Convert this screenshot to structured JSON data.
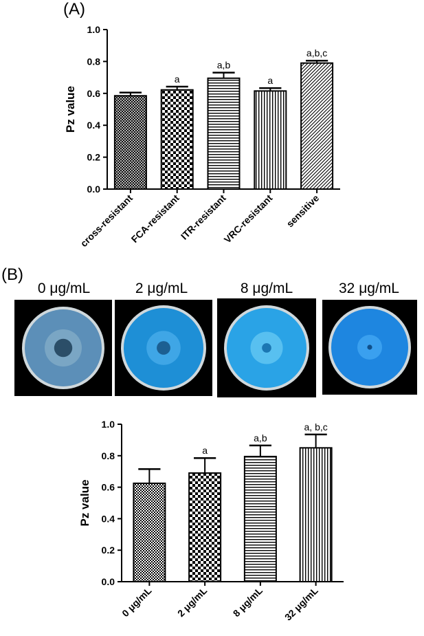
{
  "panels": {
    "a_label": "(A)",
    "b_label": "(B)"
  },
  "plates": {
    "captions": [
      "0 μg/mL",
      "2 μg/mL",
      "8 μg/mL",
      "32 μg/mL"
    ],
    "colors": {
      "background": "#000000",
      "rim": "#cfd8dc",
      "medium": [
        "#5c8fb8",
        "#1e8fd6",
        "#2aa3e6",
        "#1e86e0"
      ],
      "halo": [
        "#7aa6c4",
        "#3fa6e6",
        "#58c0f0",
        "#3aa0ef"
      ],
      "colony": [
        "#2b4e68",
        "#1c5f92",
        "#1b77b3",
        "#0f4f8a"
      ]
    }
  },
  "chart_data": [
    {
      "type": "bar",
      "categories": [
        "cross-resistant",
        "FCA-resistant",
        "ITR-resistant",
        "VRC-resistant",
        "sensitive"
      ],
      "values": [
        0.585,
        0.622,
        0.695,
        0.615,
        0.79
      ],
      "errors": [
        0.02,
        0.02,
        0.035,
        0.018,
        0.015
      ],
      "annotations": [
        "",
        "a",
        "a,b",
        "a",
        "a,b,c"
      ],
      "patterns": [
        "crosshatch",
        "checker",
        "horizontal",
        "vertical",
        "diagonal"
      ],
      "ylabel": "Pz value",
      "ylim": [
        0,
        1.0
      ],
      "yticks": [
        "0.0",
        "0.2",
        "0.4",
        "0.6",
        "0.8",
        "1.0"
      ],
      "grid": false,
      "legend": "none"
    },
    {
      "type": "bar",
      "categories": [
        "0 μg/mL",
        "2 μg/mL",
        "8 μg/mL",
        "32 μg/mL"
      ],
      "values": [
        0.625,
        0.69,
        0.795,
        0.85
      ],
      "errors": [
        0.09,
        0.095,
        0.07,
        0.085
      ],
      "annotations": [
        "",
        "a",
        "a,b",
        "a, b,c"
      ],
      "patterns": [
        "checker-fine",
        "checker",
        "horizontal",
        "vertical"
      ],
      "ylabel": "Pz value",
      "ylim": [
        0,
        1.0
      ],
      "yticks": [
        "0.0",
        "0.2",
        "0.4",
        "0.6",
        "0.8",
        "1.0"
      ],
      "grid": false,
      "legend": "none"
    }
  ]
}
